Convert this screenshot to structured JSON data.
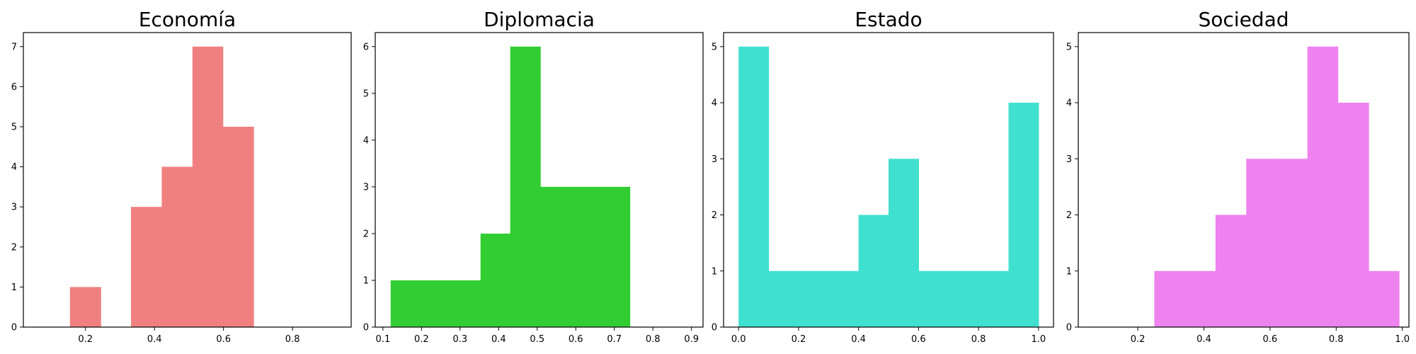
{
  "chart_data": [
    {
      "type": "bar",
      "title": "Economía",
      "color": "#F08080",
      "xlim": [
        0.02,
        0.97
      ],
      "ylim": [
        0,
        7.35
      ],
      "xticks": [
        0.2,
        0.4,
        0.6,
        0.8
      ],
      "xtick_labels": [
        "0.2",
        "0.4",
        "0.6",
        "0.8"
      ],
      "yticks": [
        0,
        1,
        2,
        3,
        4,
        5,
        6,
        7
      ],
      "ytick_labels": [
        "0",
        "1",
        "2",
        "3",
        "4",
        "5",
        "6",
        "7"
      ],
      "bins": [
        {
          "x0": 0.155,
          "x1": 0.244,
          "count": 1
        },
        {
          "x0": 0.244,
          "x1": 0.332,
          "count": 0
        },
        {
          "x0": 0.332,
          "x1": 0.421,
          "count": 3
        },
        {
          "x0": 0.421,
          "x1": 0.51,
          "count": 4
        },
        {
          "x0": 0.51,
          "x1": 0.598,
          "count": 7
        },
        {
          "x0": 0.598,
          "x1": 0.687,
          "count": 5
        }
      ]
    },
    {
      "type": "bar",
      "title": "Diplomacia",
      "color": "#32CD32",
      "xlim": [
        0.08,
        0.93
      ],
      "ylim": [
        0,
        6.3
      ],
      "xticks": [
        0.1,
        0.2,
        0.3,
        0.4,
        0.5,
        0.6,
        0.7,
        0.8,
        0.9
      ],
      "xtick_labels": [
        "0.1",
        "0.2",
        "0.3",
        "0.4",
        "0.5",
        "0.6",
        "0.7",
        "0.8",
        "0.9"
      ],
      "yticks": [
        0,
        1,
        2,
        3,
        4,
        5,
        6
      ],
      "ytick_labels": [
        "0",
        "1",
        "2",
        "3",
        "4",
        "5",
        "6"
      ],
      "bins": [
        {
          "x0": 0.12,
          "x1": 0.198,
          "count": 1
        },
        {
          "x0": 0.198,
          "x1": 0.275,
          "count": 1
        },
        {
          "x0": 0.275,
          "x1": 0.353,
          "count": 1
        },
        {
          "x0": 0.353,
          "x1": 0.43,
          "count": 2
        },
        {
          "x0": 0.43,
          "x1": 0.508,
          "count": 6
        },
        {
          "x0": 0.508,
          "x1": 0.585,
          "count": 3
        },
        {
          "x0": 0.585,
          "x1": 0.663,
          "count": 3
        },
        {
          "x0": 0.663,
          "x1": 0.74,
          "count": 3
        }
      ]
    },
    {
      "type": "bar",
      "title": "Estado",
      "color": "#40E0D0",
      "xlim": [
        -0.05,
        1.05
      ],
      "ylim": [
        0,
        5.25
      ],
      "xticks": [
        0.0,
        0.2,
        0.4,
        0.6,
        0.8,
        1.0
      ],
      "xtick_labels": [
        "0.0",
        "0.2",
        "0.4",
        "0.6",
        "0.8",
        "1.0"
      ],
      "yticks": [
        0,
        1,
        2,
        3,
        4,
        5
      ],
      "ytick_labels": [
        "0",
        "1",
        "2",
        "3",
        "4",
        "5"
      ],
      "bins": [
        {
          "x0": 0.0,
          "x1": 0.1,
          "count": 5
        },
        {
          "x0": 0.1,
          "x1": 0.2,
          "count": 1
        },
        {
          "x0": 0.2,
          "x1": 0.3,
          "count": 1
        },
        {
          "x0": 0.3,
          "x1": 0.4,
          "count": 1
        },
        {
          "x0": 0.4,
          "x1": 0.5,
          "count": 2
        },
        {
          "x0": 0.5,
          "x1": 0.6,
          "count": 3
        },
        {
          "x0": 0.6,
          "x1": 0.7,
          "count": 1
        },
        {
          "x0": 0.7,
          "x1": 0.8,
          "count": 1
        },
        {
          "x0": 0.8,
          "x1": 0.9,
          "count": 1
        },
        {
          "x0": 0.9,
          "x1": 1.0,
          "count": 4
        }
      ]
    },
    {
      "type": "bar",
      "title": "Sociedad",
      "color": "#EE82EE",
      "xlim": [
        0.02,
        1.02
      ],
      "ylim": [
        0,
        5.25
      ],
      "xticks": [
        0.2,
        0.4,
        0.6,
        0.8,
        1.0
      ],
      "xtick_labels": [
        "0.2",
        "0.4",
        "0.6",
        "0.8",
        "1.0"
      ],
      "yticks": [
        0,
        1,
        2,
        3,
        4,
        5
      ],
      "ytick_labels": [
        "0",
        "1",
        "2",
        "3",
        "4",
        "5"
      ],
      "bins": [
        {
          "x0": 0.25,
          "x1": 0.343,
          "count": 1
        },
        {
          "x0": 0.343,
          "x1": 0.435,
          "count": 1
        },
        {
          "x0": 0.435,
          "x1": 0.528,
          "count": 2
        },
        {
          "x0": 0.528,
          "x1": 0.62,
          "count": 3
        },
        {
          "x0": 0.62,
          "x1": 0.713,
          "count": 3
        },
        {
          "x0": 0.713,
          "x1": 0.805,
          "count": 5
        },
        {
          "x0": 0.805,
          "x1": 0.898,
          "count": 4
        },
        {
          "x0": 0.898,
          "x1": 0.99,
          "count": 1
        }
      ]
    }
  ]
}
